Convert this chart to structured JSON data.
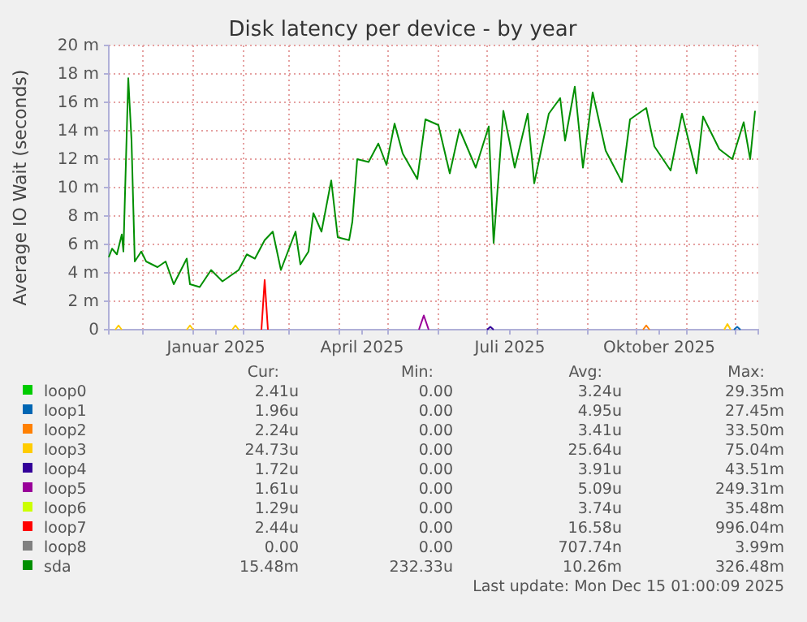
{
  "chart_data": {
    "type": "line",
    "title": "Disk latency per device - by year",
    "ylabel": "Average IO Wait (seconds)",
    "xlim": [
      "2024-11-10",
      "2025-12-15"
    ],
    "xticks": [
      {
        "value": "2024-12-01",
        "label": null
      },
      {
        "value": "2025-01-01",
        "label": null
      },
      {
        "value": "2025-01-15",
        "label": "Januar 2025"
      },
      {
        "value": "2025-02-01",
        "label": null
      },
      {
        "value": "2025-03-01",
        "label": null
      },
      {
        "value": "2025-04-01",
        "label": null
      },
      {
        "value": "2025-04-15",
        "label": "April 2025"
      },
      {
        "value": "2025-05-01",
        "label": null
      },
      {
        "value": "2025-06-01",
        "label": null
      },
      {
        "value": "2025-07-01",
        "label": null
      },
      {
        "value": "2025-07-15",
        "label": "Juli 2025"
      },
      {
        "value": "2025-08-01",
        "label": null
      },
      {
        "value": "2025-09-01",
        "label": null
      },
      {
        "value": "2025-10-01",
        "label": null
      },
      {
        "value": "2025-10-15",
        "label": "Oktober 2025"
      },
      {
        "value": "2025-11-01",
        "label": null
      },
      {
        "value": "2025-12-01",
        "label": null
      }
    ],
    "ylim": [
      0,
      20
    ],
    "yticks": [
      0,
      {
        "value": 2,
        "label": "2 m"
      },
      {
        "value": 4,
        "label": "4 m"
      },
      {
        "value": 6,
        "label": "6 m"
      },
      {
        "value": 8,
        "label": "8 m"
      },
      {
        "value": 10,
        "label": "10 m"
      },
      {
        "value": 12,
        "label": "12 m"
      },
      {
        "value": 14,
        "label": "14 m"
      },
      {
        "value": 16,
        "label": "16 m"
      },
      {
        "value": 18,
        "label": "18 m"
      },
      {
        "value": 20,
        "label": "20 m"
      }
    ],
    "grid": true,
    "legend": "bottom",
    "series": [
      {
        "name": "loop0",
        "color": "#00cc00"
      },
      {
        "name": "loop1",
        "color": "#0066b3",
        "x": [
          "2025-11-30",
          "2025-12-02",
          "2025-12-04"
        ],
        "values": [
          0,
          0.2,
          0
        ]
      },
      {
        "name": "loop2",
        "color": "#ff8000",
        "x": [
          "2025-10-05",
          "2025-10-07",
          "2025-10-09"
        ],
        "values": [
          0,
          0.3,
          0
        ]
      },
      {
        "name": "loop3",
        "color": "#ffcc00",
        "x": [
          "2024-11-14",
          "2024-11-16",
          "2024-11-18",
          null,
          "2024-12-28",
          "2024-12-30",
          "2025-01-01",
          null,
          "2025-01-25",
          "2025-01-27",
          "2025-01-29",
          null,
          "2025-11-24",
          "2025-11-26",
          "2025-11-28"
        ],
        "values": [
          0,
          0.3,
          0,
          null,
          0,
          0.3,
          0,
          null,
          0,
          0.3,
          0,
          null,
          0,
          0.4,
          0
        ]
      },
      {
        "name": "loop4",
        "color": "#330099",
        "x": [
          "2025-07-01",
          "2025-07-03",
          "2025-07-05"
        ],
        "values": [
          0,
          0.2,
          0
        ]
      },
      {
        "name": "loop5",
        "color": "#990099",
        "x": [
          "2025-05-20",
          "2025-05-23",
          "2025-05-26"
        ],
        "values": [
          0,
          1,
          0
        ]
      },
      {
        "name": "loop6",
        "color": "#ccff00"
      },
      {
        "name": "loop7",
        "color": "#ff0000",
        "x": [
          "2025-02-12",
          "2025-02-14",
          "2025-02-16"
        ],
        "values": [
          0,
          3.5,
          0
        ]
      },
      {
        "name": "loop8",
        "color": "#808080"
      },
      {
        "name": "sda",
        "color": "#008f00",
        "x": [
          "2024-11-10",
          "2024-11-12",
          "2024-11-15",
          "2024-11-18",
          "2024-11-19",
          "2024-11-22",
          "2024-11-24",
          "2024-11-26",
          "2024-11-30",
          "2024-12-03",
          "2024-12-10",
          "2024-12-15",
          "2024-12-20",
          "2024-12-28",
          "2024-12-30",
          "2025-01-05",
          "2025-01-12",
          "2025-01-19",
          "2025-01-29",
          "2025-02-03",
          "2025-02-08",
          "2025-02-14",
          "2025-02-19",
          "2025-02-24",
          "2025-03-05",
          "2025-03-08",
          "2025-03-13",
          "2025-03-16",
          "2025-03-21",
          "2025-03-27",
          "2025-03-31",
          "2025-04-07",
          "2025-04-09",
          "2025-04-12",
          "2025-04-19",
          "2025-04-25",
          "2025-04-30",
          "2025-05-05",
          "2025-05-10",
          "2025-05-19",
          "2025-05-24",
          "2025-06-01",
          "2025-06-08",
          "2025-06-14",
          "2025-06-24",
          "2025-07-02",
          "2025-07-05",
          "2025-07-11",
          "2025-07-18",
          "2025-07-26",
          "2025-07-30",
          "2025-08-08",
          "2025-08-15",
          "2025-08-18",
          "2025-08-24",
          "2025-08-29",
          "2025-09-04",
          "2025-09-12",
          "2025-09-22",
          "2025-09-27",
          "2025-10-07",
          "2025-10-12",
          "2025-10-22",
          "2025-10-29",
          "2025-11-07",
          "2025-11-11",
          "2025-11-21",
          "2025-11-29",
          "2025-12-06",
          "2025-12-10",
          "2025-12-13"
        ],
        "values": [
          5.1,
          5.7,
          5.3,
          6.7,
          5.5,
          17.7,
          13.3,
          4.8,
          5.5,
          4.8,
          4.4,
          4.8,
          3.2,
          5,
          3.2,
          3,
          4.2,
          3.4,
          4.2,
          5.3,
          5,
          6.3,
          6.9,
          4.2,
          6.9,
          4.6,
          5.5,
          8.2,
          6.9,
          10.5,
          6.5,
          6.3,
          7.6,
          12,
          11.8,
          13.1,
          11.6,
          14.5,
          12.4,
          10.6,
          14.8,
          14.4,
          11,
          14.1,
          11.4,
          14.3,
          6.1,
          15.4,
          11.4,
          15.2,
          10.3,
          15.2,
          16.3,
          13.3,
          17.1,
          11.4,
          16.7,
          12.6,
          10.4,
          14.8,
          15.6,
          12.9,
          11.2,
          15.2,
          11,
          15,
          12.7,
          12,
          14.6,
          12,
          15.4
        ]
      }
    ],
    "annotations": [
      "Cur:",
      "Min:",
      "Avg:",
      "Max:",
      "2.41u",
      "0.00",
      "3.24u",
      "29.35m",
      "1.96u",
      "0.00",
      "4.95u",
      "27.45m",
      "2.24u",
      "0.00",
      "3.41u",
      "33.50m",
      "24.73u",
      "0.00",
      "25.64u",
      "75.04m",
      "1.72u",
      "0.00",
      "3.91u",
      "43.51m",
      "1.61u",
      "0.00",
      "5.09u",
      "249.31m",
      "1.29u",
      "0.00",
      "3.74u",
      "35.48m",
      "2.44u",
      "0.00",
      "16.58u",
      "996.04m",
      "0.00",
      "0.00",
      "707.74n",
      "3.99m",
      "15.48m",
      "232.33u",
      "10.26m",
      "326.48m",
      "Last update: Mon Dec 15 01:00:09 2025"
    ]
  }
}
